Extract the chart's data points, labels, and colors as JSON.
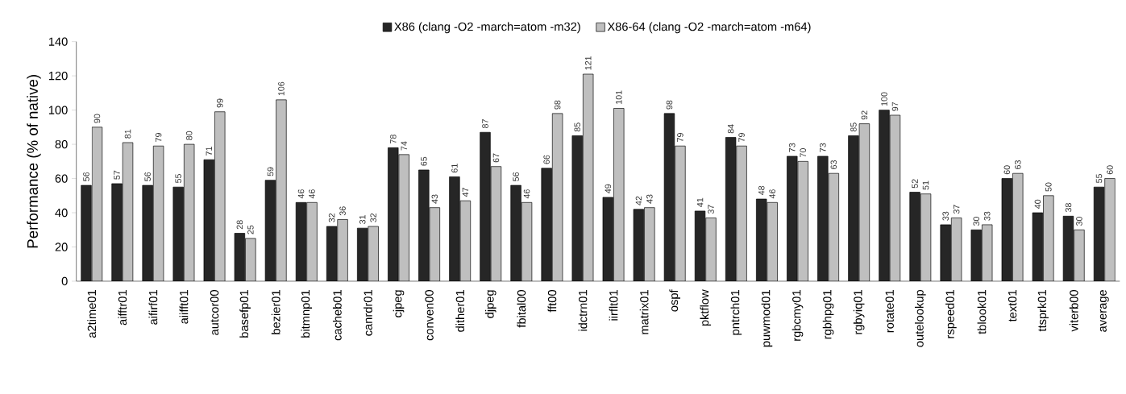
{
  "chart_data": {
    "type": "bar",
    "ylabel": "Performance (% of native)",
    "categories": [
      "a2time01",
      "aifftr01",
      "aifirf01",
      "aiifft01",
      "autcor00",
      "basefp01",
      "bezier01",
      "bitmnp01",
      "cacheb01",
      "canrdr01",
      "cjpeg",
      "conven00",
      "dither01",
      "djpeg",
      "fbital00",
      "fft00",
      "idctrn01",
      "iirflt01",
      "matrix01",
      "ospf",
      "pktflow",
      "pntrch01",
      "puwmod01",
      "rgbcmy01",
      "rgbhpg01",
      "rgbyiq01",
      "rotate01",
      "outelookup",
      "rspeed01",
      "tblook01",
      "text01",
      "ttsprk01",
      "viterb00",
      "average"
    ],
    "series": [
      {
        "name": "X86 (clang -O2 -march=atom -m32)",
        "color": "#262626",
        "values": [
          56,
          57,
          56,
          55,
          71,
          28,
          59,
          46,
          32,
          31,
          78,
          65,
          61,
          87,
          56,
          66,
          85,
          49,
          42,
          98,
          41,
          84,
          48,
          73,
          73,
          85,
          100,
          52,
          33,
          30,
          60,
          40,
          38,
          55
        ]
      },
      {
        "name": "X86-64 (clang -O2 -march=atom -m64)",
        "color": "#bfbfbf",
        "values": [
          90,
          81,
          79,
          80,
          99,
          25,
          106,
          46,
          36,
          32,
          74,
          43,
          47,
          67,
          46,
          98,
          121,
          101,
          43,
          79,
          37,
          79,
          46,
          70,
          63,
          92,
          97,
          51,
          37,
          33,
          63,
          50,
          30,
          60
        ]
      }
    ],
    "ylim": [
      0,
      140
    ],
    "yticks": [
      0,
      20,
      40,
      60,
      80,
      100,
      120,
      140
    ],
    "data_labels": true,
    "grid": false,
    "legend": "top"
  }
}
